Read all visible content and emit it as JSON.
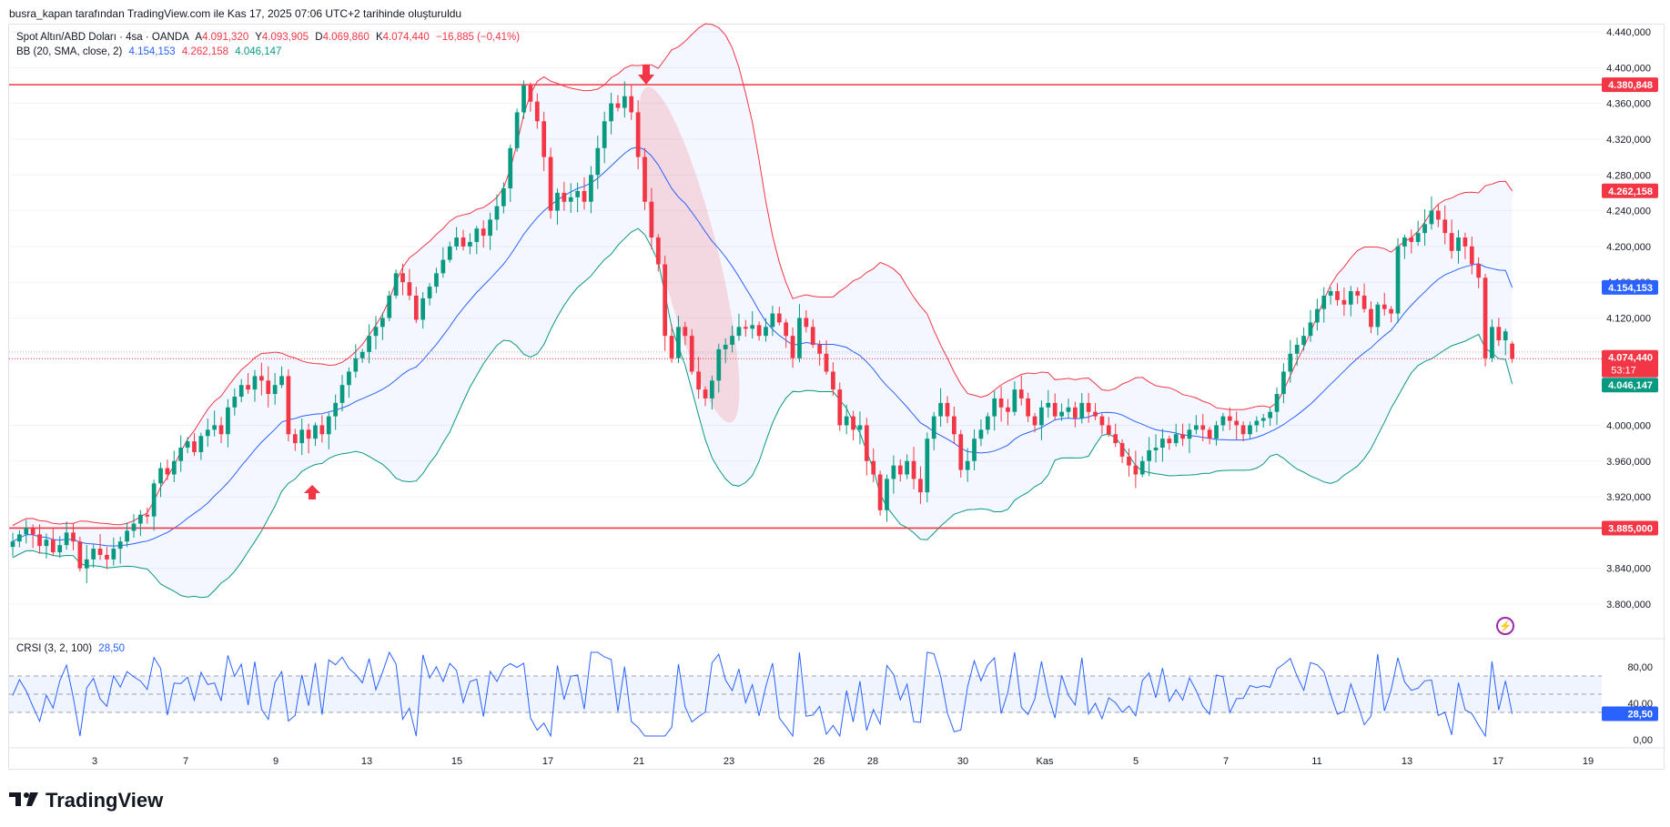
{
  "header": {
    "attribution": "busra_kapan tarafından TradingView.com ile Kas 17, 2025 07:06 UTC+2 tarihinde oluşturuldu"
  },
  "legend": {
    "symbol": "Spot Altın/ABD Doları · 4sa · OANDA",
    "o_label": "A",
    "o_value": "4.091,320",
    "h_label": "Y",
    "h_value": "4.093,905",
    "l_label": "D",
    "l_value": "4.069,860",
    "c_label": "K",
    "c_value": "4.074,440",
    "change": "−16,885 (−0,41%)",
    "bb_label": "BB (20, SMA, close, 2)",
    "bb_basis": "4.154,153",
    "bb_upper": "4.262,158",
    "bb_lower": "4.046,147",
    "crsi_label": "CRSI (3, 2, 100)",
    "crsi_value": "28,50"
  },
  "brand": {
    "name": "TradingView"
  },
  "colors": {
    "up": "#089981",
    "down": "#f23645",
    "basis": "#2962ff",
    "upper": "#f23645",
    "lower": "#089981",
    "level": "#f23645",
    "crsi": "#2962ff"
  },
  "icons": {
    "arrow_up": "arrow-up-icon",
    "arrow_down": "arrow-down-icon",
    "alert": "lightning-icon"
  },
  "chart_data": [
    {
      "type": "candlestick",
      "title": "Spot Altın/ABD Doları · 4sa · OANDA",
      "ylim": [
        3760,
        4450
      ],
      "y_ticks": [
        "4.440,000",
        "4.400,000",
        "4.360,000",
        "4.320,000",
        "4.280,000",
        "4.240,000",
        "4.200,000",
        "4.160,000",
        "4.120,000",
        "4.080,000",
        "4.000,000",
        "3.960,000",
        "3.920,000",
        "3.840,000",
        "3.800,000"
      ],
      "x_ticks": [
        "3",
        "7",
        "9",
        "13",
        "15",
        "17",
        "21",
        "23",
        "26",
        "28",
        "30",
        "Kas",
        "5",
        "7",
        "11",
        "13",
        "17",
        "19"
      ],
      "levels": [
        {
          "value": 4380.848,
          "label": "4.380,848"
        },
        {
          "value": 3885.0,
          "label": "3.885,000"
        }
      ],
      "price_labels": [
        {
          "value": 4262.158,
          "label": "4.262,158",
          "color": "#f23645"
        },
        {
          "value": 4154.153,
          "label": "4.154,153",
          "color": "#2962ff"
        },
        {
          "value": 4074.44,
          "label": "4.074,440",
          "sub": "53:17",
          "color": "#f23645"
        },
        {
          "value": 4046.147,
          "label": "4.046,147",
          "color": "#089981"
        }
      ],
      "closes": [
        3870,
        3878,
        3885,
        3878,
        3865,
        3872,
        3858,
        3866,
        3880,
        3870,
        3840,
        3850,
        3862,
        3855,
        3850,
        3862,
        3870,
        3882,
        3890,
        3900,
        3898,
        3935,
        3952,
        3945,
        3960,
        3975,
        3982,
        3970,
        3988,
        3995,
        4000,
        3990,
        4020,
        4032,
        4045,
        4040,
        4055,
        4050,
        4035,
        4045,
        4055,
        3990,
        3980,
        3995,
        3985,
        4000,
        3990,
        4010,
        4025,
        4045,
        4060,
        4075,
        4082,
        4100,
        4110,
        4120,
        4145,
        4170,
        4160,
        4145,
        4118,
        4142,
        4155,
        4170,
        4185,
        4200,
        4210,
        4200,
        4205,
        4220,
        4212,
        4230,
        4245,
        4265,
        4310,
        4350,
        4380,
        4362,
        4340,
        4300,
        4240,
        4260,
        4250,
        4255,
        4262,
        4250,
        4280,
        4310,
        4340,
        4360,
        4355,
        4368,
        4350,
        4300,
        4250,
        4210,
        4180,
        4100,
        4075,
        4110,
        4100,
        4060,
        4040,
        4030,
        4050,
        4085,
        4090,
        4100,
        4110,
        4108,
        4112,
        4100,
        4110,
        4125,
        4115,
        4100,
        4075,
        4120,
        4110,
        4090,
        4080,
        4060,
        4040,
        4000,
        4010,
        3995,
        4000,
        3960,
        3945,
        3905,
        3940,
        3955,
        3945,
        3960,
        3940,
        3925,
        3985,
        4010,
        4025,
        4010,
        3990,
        3950,
        3960,
        3985,
        3995,
        4010,
        4030,
        4020,
        4015,
        4040,
        4030,
        4010,
        4000,
        4020,
        4025,
        4010,
        4015,
        4020,
        4008,
        4025,
        4015,
        4010,
        4000,
        3990,
        3980,
        3965,
        3955,
        3945,
        3960,
        3972,
        3975,
        3985,
        3980,
        3990,
        3985,
        3995,
        4000,
        3995,
        3985,
        4000,
        4010,
        4005,
        4000,
        3990,
        4000,
        4005,
        4008,
        4015,
        4035,
        4060,
        4080,
        4090,
        4100,
        4115,
        4130,
        4145,
        4150,
        4140,
        4135,
        4150,
        4145,
        4130,
        4110,
        4135,
        4130,
        4125,
        4200,
        4210,
        4205,
        4215,
        4225,
        4240,
        4230,
        4215,
        4195,
        4210,
        4200,
        4180,
        4165,
        4075,
        4110,
        4095,
        4105,
        4074
      ],
      "ohlc_last": {
        "open": 4091.32,
        "high": 4093.905,
        "low": 4069.86,
        "close": 4074.44
      },
      "bollinger": {
        "period": 20,
        "std": 2,
        "basis": 4154.153,
        "upper": 4262.158,
        "lower": 4046.147
      }
    },
    {
      "type": "line",
      "title": "CRSI (3, 2, 100)",
      "ylim": [
        0,
        100
      ],
      "y_ticks": [
        "80,00",
        "40,00",
        "0,00"
      ],
      "bands": [
        70,
        30
      ],
      "last": 28.5,
      "last_label": "28,50"
    }
  ]
}
